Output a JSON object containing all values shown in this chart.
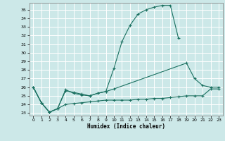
{
  "title": "",
  "xlabel": "Humidex (Indice chaleur)",
  "background_color": "#cce8e8",
  "grid_color": "#ffffff",
  "line_color": "#1a7060",
  "xlim": [
    -0.5,
    23.5
  ],
  "ylim": [
    22.7,
    35.8
  ],
  "xticks": [
    0,
    1,
    2,
    3,
    4,
    5,
    6,
    7,
    8,
    9,
    10,
    11,
    12,
    13,
    14,
    15,
    16,
    17,
    18,
    19,
    20,
    21,
    22,
    23
  ],
  "yticks": [
    23,
    24,
    25,
    26,
    27,
    28,
    29,
    30,
    31,
    32,
    33,
    34,
    35
  ],
  "line1_x": [
    0,
    1,
    2,
    3,
    4,
    5,
    6,
    7,
    8,
    9,
    10,
    11,
    12,
    13,
    14,
    15,
    16,
    17,
    18
  ],
  "line1_y": [
    26.0,
    24.2,
    23.1,
    23.5,
    25.7,
    25.3,
    25.1,
    25.0,
    25.3,
    25.5,
    28.2,
    31.3,
    33.2,
    34.5,
    35.0,
    35.3,
    35.5,
    35.5,
    31.7
  ],
  "line2_x": [
    0,
    1,
    2,
    3,
    4,
    5,
    6,
    7,
    8,
    9,
    10,
    19,
    20,
    21,
    22,
    23
  ],
  "line2_y": [
    26.0,
    24.2,
    23.1,
    23.5,
    25.6,
    25.4,
    25.2,
    25.0,
    25.3,
    25.5,
    25.8,
    28.8,
    27.0,
    26.2,
    26.0,
    26.0
  ],
  "line3_x": [
    0,
    1,
    2,
    3,
    4,
    5,
    6,
    7,
    8,
    9,
    10,
    11,
    12,
    13,
    14,
    15,
    16,
    17,
    18,
    19,
    20,
    21,
    22,
    23
  ],
  "line3_y": [
    26.0,
    24.2,
    23.1,
    23.5,
    24.0,
    24.1,
    24.2,
    24.3,
    24.4,
    24.5,
    24.5,
    24.5,
    24.5,
    24.6,
    24.6,
    24.7,
    24.7,
    24.8,
    24.9,
    25.0,
    25.0,
    25.0,
    25.8,
    25.8
  ]
}
